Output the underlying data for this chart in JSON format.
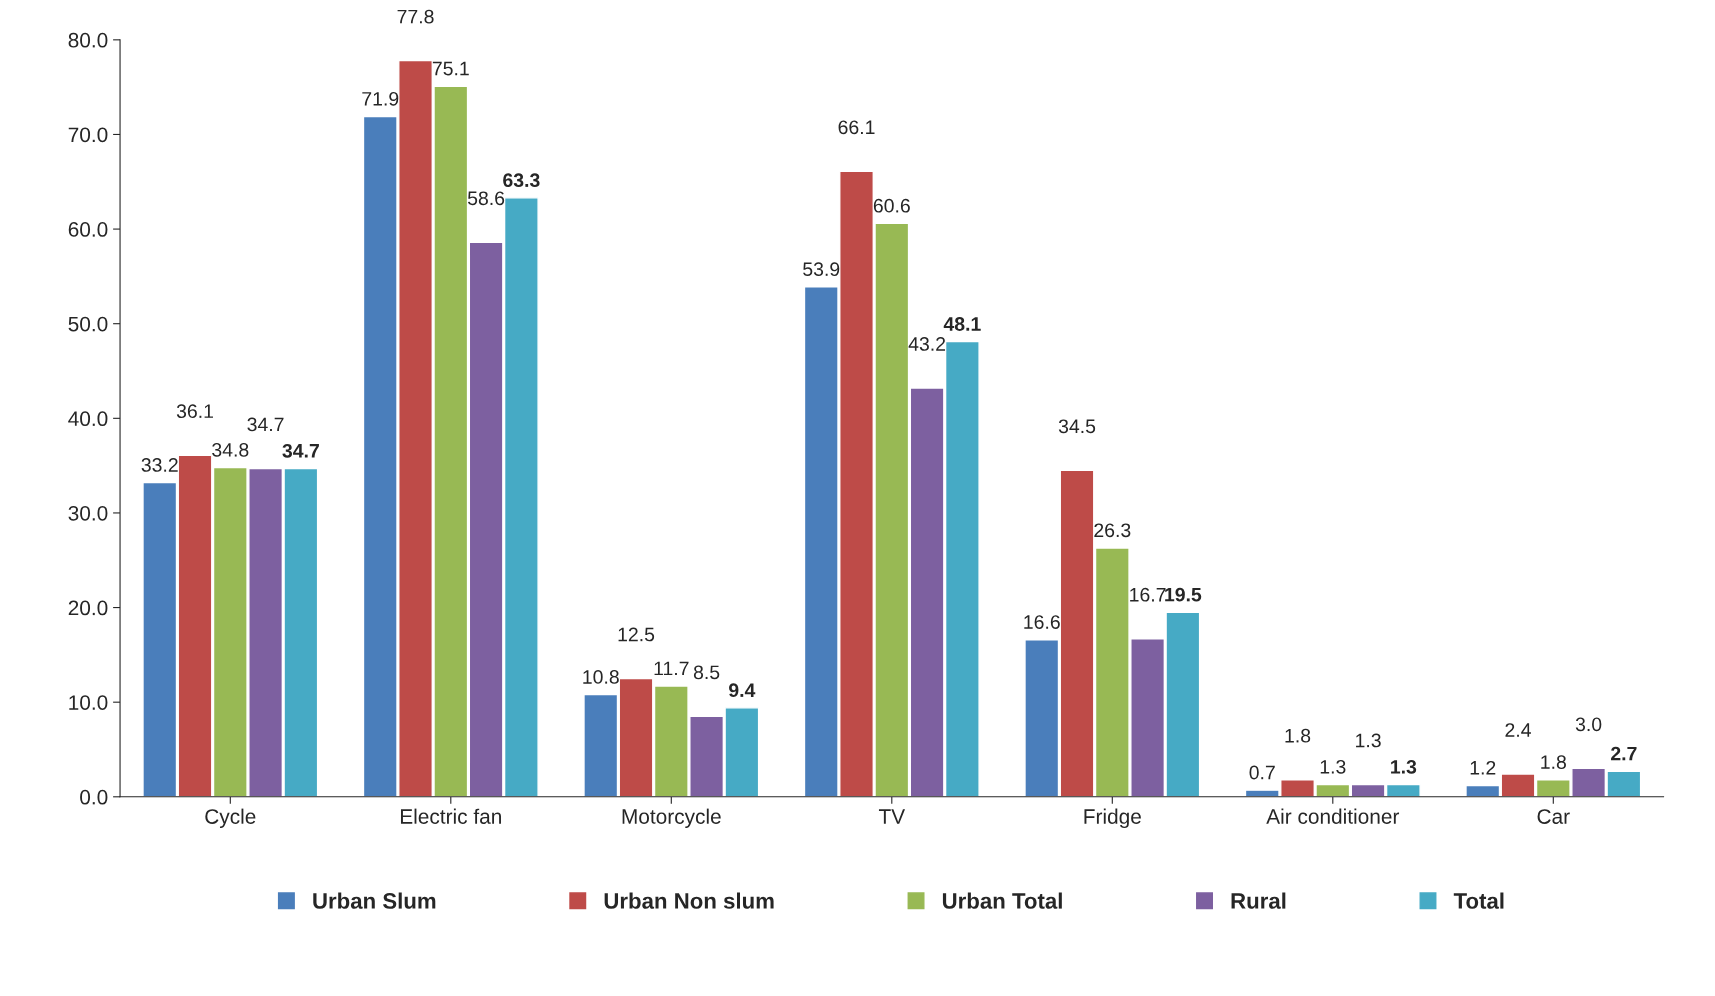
{
  "chart_data": {
    "type": "bar",
    "categories": [
      "Cycle",
      "Electric fan",
      "Motorcycle",
      "TV",
      "Fridge",
      "Air conditioner",
      "Car"
    ],
    "series": [
      {
        "name": "Urban Slum",
        "color": "#4a7ebb",
        "values": [
          33.2,
          71.9,
          10.8,
          53.9,
          16.6,
          0.7,
          1.2
        ],
        "value_labels": [
          "33.2",
          "71.9",
          "10.8",
          "53.9",
          "16.6",
          "0.7",
          "1.2"
        ]
      },
      {
        "name": "Urban Non slum",
        "color": "#be4b48",
        "values": [
          36.1,
          77.8,
          12.5,
          66.1,
          34.5,
          1.8,
          2.4
        ],
        "value_labels": [
          "36.1",
          "77.8",
          "12.5",
          "66.1",
          "34.5",
          "1.8",
          "2.4"
        ]
      },
      {
        "name": "Urban Total",
        "color": "#98b954",
        "values": [
          34.8,
          75.1,
          11.7,
          60.6,
          26.3,
          1.3,
          1.8
        ],
        "value_labels": [
          "34.8",
          "75.1",
          "11.7",
          "60.6",
          "26.3",
          "1.3",
          "1.8"
        ]
      },
      {
        "name": "Rural",
        "color": "#7d60a0",
        "values": [
          34.7,
          58.6,
          8.5,
          43.2,
          16.7,
          1.3,
          3.0
        ],
        "value_labels": [
          "34.7",
          "58.6",
          "8.5",
          "43.2",
          "16.7",
          "1.3",
          "3.0"
        ]
      },
      {
        "name": "Total",
        "color": "#46aac5",
        "values": [
          34.7,
          63.3,
          9.4,
          48.1,
          19.5,
          1.3,
          2.7
        ],
        "value_labels": [
          "34.7",
          "63.3",
          "9.4",
          "48.1",
          "19.5",
          "1.3",
          "2.7"
        ]
      }
    ],
    "ylim": [
      0,
      80
    ],
    "yticks": [
      {
        "value": 0,
        "label": "0.0"
      },
      {
        "value": 10,
        "label": "10.0"
      },
      {
        "value": 20,
        "label": "20.0"
      },
      {
        "value": 30,
        "label": "30.0"
      },
      {
        "value": 40,
        "label": "40.0"
      },
      {
        "value": 50,
        "label": "50.0"
      },
      {
        "value": 60,
        "label": "60.0"
      },
      {
        "value": 70,
        "label": "70.0"
      },
      {
        "value": 80,
        "label": "80.0"
      }
    ],
    "legend": "bottom",
    "grid": false
  }
}
